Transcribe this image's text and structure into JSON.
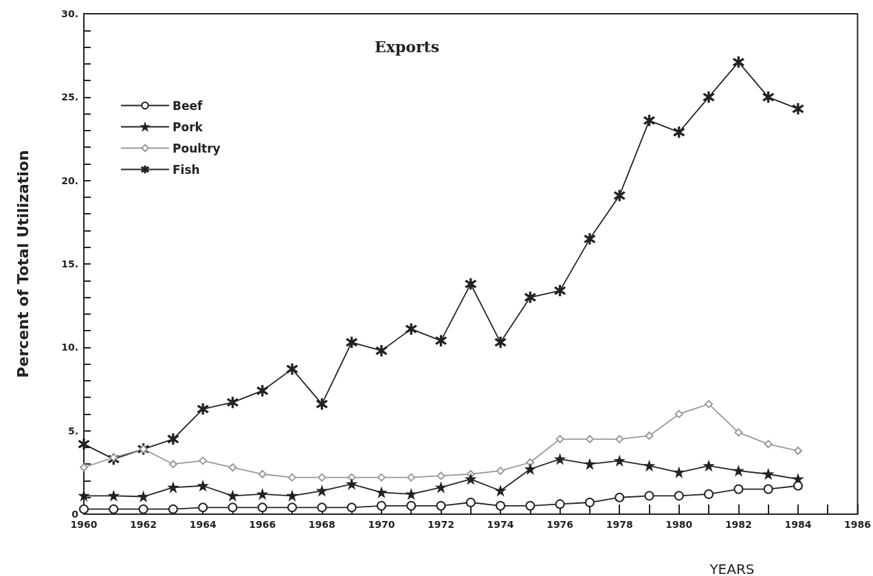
{
  "chart_data": {
    "type": "line",
    "title": "Exports",
    "xlabel": "YEARS",
    "ylabel": "Percent of Total Utilization",
    "x": [
      1960,
      1961,
      1962,
      1963,
      1964,
      1965,
      1966,
      1967,
      1968,
      1969,
      1970,
      1971,
      1972,
      1973,
      1974,
      1975,
      1976,
      1977,
      1978,
      1979,
      1980,
      1981,
      1982,
      1983,
      1984
    ],
    "series": [
      {
        "name": "Beef",
        "color": "#222222",
        "marker": "circle",
        "values": [
          0.3,
          0.3,
          0.3,
          0.3,
          0.4,
          0.4,
          0.4,
          0.4,
          0.4,
          0.4,
          0.5,
          0.5,
          0.5,
          0.7,
          0.5,
          0.5,
          0.6,
          0.7,
          1.0,
          1.1,
          1.1,
          1.2,
          1.5,
          1.5,
          1.7
        ]
      },
      {
        "name": "Pork",
        "color": "#222222",
        "marker": "star",
        "values": [
          1.1,
          1.1,
          1.05,
          1.6,
          1.7,
          1.1,
          1.2,
          1.1,
          1.4,
          1.8,
          1.3,
          1.2,
          1.6,
          2.1,
          1.4,
          2.7,
          3.3,
          3.0,
          3.2,
          2.9,
          2.5,
          2.9,
          2.6,
          2.4,
          2.1
        ]
      },
      {
        "name": "Poultry",
        "color": "#999999",
        "marker": "diamond",
        "values": [
          2.8,
          3.4,
          3.9,
          3.0,
          3.2,
          2.8,
          2.4,
          2.2,
          2.2,
          2.2,
          2.2,
          2.2,
          2.3,
          2.4,
          2.6,
          3.1,
          4.5,
          4.5,
          4.5,
          4.7,
          6.0,
          6.6,
          4.9,
          4.2,
          3.8
        ]
      },
      {
        "name": "Fish",
        "color": "#222222",
        "marker": "cross",
        "values": [
          4.2,
          3.3,
          3.9,
          4.5,
          6.3,
          6.7,
          7.4,
          8.7,
          6.6,
          10.3,
          9.8,
          11.1,
          10.4,
          13.8,
          10.3,
          13.0,
          13.4,
          16.5,
          19.1,
          23.6,
          22.9,
          25.0,
          27.1,
          25.0,
          24.3
        ]
      }
    ],
    "xlim": [
      1960,
      1986
    ],
    "xticks": [
      1960,
      {
        "value": 1961,
        "label": null
      },
      1962,
      {
        "value": 1963,
        "label": null
      },
      1964,
      {
        "value": 1965,
        "label": null
      },
      1966,
      {
        "value": 1967,
        "label": null
      },
      1968,
      {
        "value": 1969,
        "label": null
      },
      1970,
      {
        "value": 1971,
        "label": null
      },
      1972,
      {
        "value": 1973,
        "label": null
      },
      1974,
      {
        "value": 1975,
        "label": null
      },
      1976,
      {
        "value": 1977,
        "label": null
      },
      1978,
      {
        "value": 1979,
        "label": null
      },
      1980,
      {
        "value": 1981,
        "label": null
      },
      1982,
      {
        "value": 1983,
        "label": null
      },
      1984,
      {
        "value": 1985,
        "label": null
      },
      1986
    ],
    "ylim": [
      0,
      30
    ],
    "yticks": [
      0,
      {
        "value": 1,
        "label": null
      },
      {
        "value": 2,
        "label": null
      },
      {
        "value": 3,
        "label": null
      },
      {
        "value": 4,
        "label": null
      },
      {
        "value": 5,
        "label": "5."
      },
      {
        "value": 6,
        "label": null
      },
      {
        "value": 7,
        "label": null
      },
      {
        "value": 8,
        "label": null
      },
      {
        "value": 9,
        "label": null
      },
      {
        "value": 10,
        "label": "10."
      },
      {
        "value": 11,
        "label": null
      },
      {
        "value": 12,
        "label": null
      },
      {
        "value": 13,
        "label": null
      },
      {
        "value": 14,
        "label": null
      },
      {
        "value": 15,
        "label": "15."
      },
      {
        "value": 16,
        "label": null
      },
      {
        "value": 17,
        "label": null
      },
      {
        "value": 18,
        "label": null
      },
      {
        "value": 19,
        "label": null
      },
      {
        "value": 20,
        "label": "20."
      },
      {
        "value": 21,
        "label": null
      },
      {
        "value": 22,
        "label": null
      },
      {
        "value": 23,
        "label": null
      },
      {
        "value": 24,
        "label": null
      },
      {
        "value": 25,
        "label": "25."
      },
      {
        "value": 26,
        "label": null
      },
      {
        "value": 27,
        "label": null
      },
      {
        "value": 28,
        "label": null
      },
      {
        "value": 29,
        "label": null
      },
      {
        "value": 30,
        "label": "30."
      }
    ],
    "grid": false,
    "legend": "top left",
    "line_style": "solid"
  }
}
